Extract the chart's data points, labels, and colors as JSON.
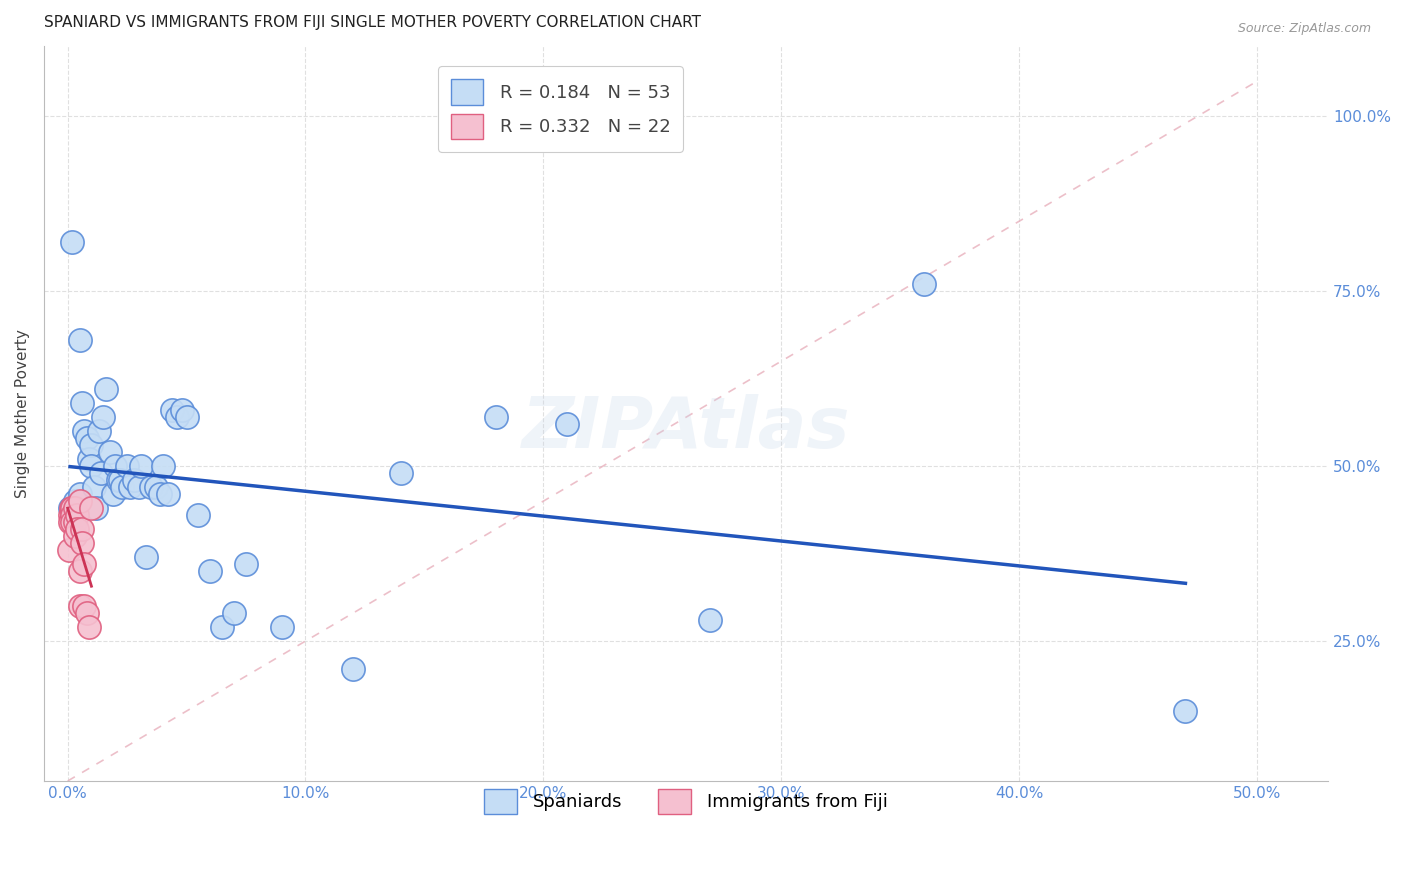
{
  "title": "SPANIARD VS IMMIGRANTS FROM FIJI SINGLE MOTHER POVERTY CORRELATION CHART",
  "source": "Source: ZipAtlas.com",
  "ylabel_label": "Single Mother Poverty",
  "x_tick_labels": [
    "0.0%",
    "10.0%",
    "20.0%",
    "30.0%",
    "40.0%",
    "50.0%"
  ],
  "x_tick_values": [
    0.0,
    0.1,
    0.2,
    0.3,
    0.4,
    0.5
  ],
  "y_tick_labels": [
    "25.0%",
    "50.0%",
    "75.0%",
    "100.0%"
  ],
  "y_tick_values": [
    0.25,
    0.5,
    0.75,
    1.0
  ],
  "xlim": [
    -0.01,
    0.53
  ],
  "ylim": [
    0.05,
    1.1
  ],
  "r1": "0.184",
  "n1": "53",
  "r2": "0.332",
  "n2": "22",
  "color_spaniards_fill": "#c5ddf5",
  "color_spaniards_edge": "#5b8dd9",
  "color_fiji_fill": "#f5c0d0",
  "color_fiji_edge": "#e06080",
  "color_line_spaniards": "#2255bb",
  "color_line_fiji_solid": "#cc3355",
  "color_line_dashed": "#e8b0bc",
  "background_color": "#ffffff",
  "grid_color": "#e0e0e0",
  "watermark": "ZIPAtlas",
  "spaniards_x": [
    0.001,
    0.002,
    0.003,
    0.003,
    0.004,
    0.005,
    0.005,
    0.006,
    0.007,
    0.008,
    0.009,
    0.01,
    0.01,
    0.011,
    0.012,
    0.013,
    0.014,
    0.015,
    0.016,
    0.018,
    0.019,
    0.02,
    0.021,
    0.022,
    0.023,
    0.025,
    0.026,
    0.028,
    0.03,
    0.031,
    0.033,
    0.035,
    0.037,
    0.039,
    0.04,
    0.042,
    0.044,
    0.046,
    0.048,
    0.05,
    0.055,
    0.06,
    0.065,
    0.07,
    0.075,
    0.09,
    0.12,
    0.14,
    0.18,
    0.21,
    0.27,
    0.36,
    0.47
  ],
  "spaniards_y": [
    0.44,
    0.82,
    0.43,
    0.45,
    0.44,
    0.68,
    0.46,
    0.59,
    0.55,
    0.54,
    0.51,
    0.53,
    0.5,
    0.47,
    0.44,
    0.55,
    0.49,
    0.57,
    0.61,
    0.52,
    0.46,
    0.5,
    0.48,
    0.48,
    0.47,
    0.5,
    0.47,
    0.48,
    0.47,
    0.5,
    0.37,
    0.47,
    0.47,
    0.46,
    0.5,
    0.46,
    0.58,
    0.57,
    0.58,
    0.57,
    0.43,
    0.35,
    0.27,
    0.29,
    0.36,
    0.27,
    0.21,
    0.49,
    0.57,
    0.56,
    0.28,
    0.76,
    0.15
  ],
  "fiji_x": [
    0.0005,
    0.001,
    0.001,
    0.0015,
    0.002,
    0.002,
    0.002,
    0.003,
    0.003,
    0.003,
    0.004,
    0.004,
    0.005,
    0.005,
    0.005,
    0.006,
    0.006,
    0.007,
    0.007,
    0.008,
    0.009,
    0.01
  ],
  "fiji_y": [
    0.38,
    0.43,
    0.42,
    0.44,
    0.44,
    0.43,
    0.42,
    0.44,
    0.42,
    0.4,
    0.43,
    0.41,
    0.45,
    0.35,
    0.3,
    0.41,
    0.39,
    0.36,
    0.3,
    0.29,
    0.27,
    0.44
  ],
  "title_fontsize": 11,
  "axis_label_fontsize": 11,
  "tick_fontsize": 11,
  "legend_fontsize": 13,
  "dot_size": 280
}
